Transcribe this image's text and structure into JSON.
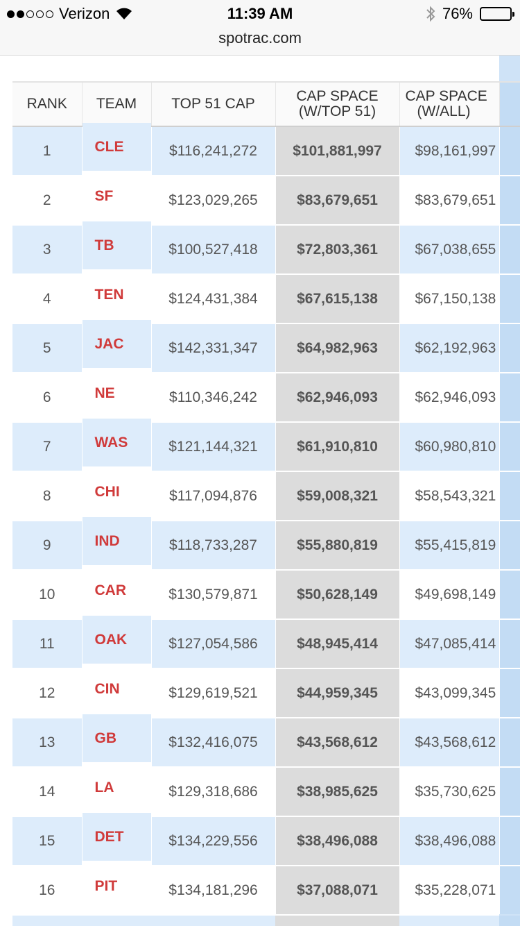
{
  "status_bar": {
    "carrier": "Verizon",
    "time": "11:39 AM",
    "battery": "76%",
    "battery_level": 0.76,
    "icons": [
      "signal-dots-icon",
      "wifi-icon",
      "bluetooth-icon",
      "battery-icon"
    ]
  },
  "address_bar": {
    "url": "spotrac.com"
  },
  "colors": {
    "team_text": "#d03a3a",
    "row_highlight": "#ddecfb",
    "cap_space_column": "#dcdcdc"
  },
  "table": {
    "headers": {
      "rank": "RANK",
      "team": "TEAM",
      "top51": "TOP 51 CAP",
      "cap_space_top51_line1": "CAP SPACE",
      "cap_space_top51_line2": "(W/TOP 51)",
      "cap_space_all_line1": "CAP SPACE",
      "cap_space_all_line2": "(W/ALL)"
    },
    "rows": [
      {
        "rank": "1",
        "team": "CLE",
        "top51": "$116,241,272",
        "cap_top51": "$101,881,997",
        "cap_all": "$98,161,997"
      },
      {
        "rank": "2",
        "team": "SF",
        "top51": "$123,029,265",
        "cap_top51": "$83,679,651",
        "cap_all": "$83,679,651"
      },
      {
        "rank": "3",
        "team": "TB",
        "top51": "$100,527,418",
        "cap_top51": "$72,803,361",
        "cap_all": "$67,038,655"
      },
      {
        "rank": "4",
        "team": "TEN",
        "top51": "$124,431,384",
        "cap_top51": "$67,615,138",
        "cap_all": "$67,150,138"
      },
      {
        "rank": "5",
        "team": "JAC",
        "top51": "$142,331,347",
        "cap_top51": "$64,982,963",
        "cap_all": "$62,192,963"
      },
      {
        "rank": "6",
        "team": "NE",
        "top51": "$110,346,242",
        "cap_top51": "$62,946,093",
        "cap_all": "$62,946,093"
      },
      {
        "rank": "7",
        "team": "WAS",
        "top51": "$121,144,321",
        "cap_top51": "$61,910,810",
        "cap_all": "$60,980,810"
      },
      {
        "rank": "8",
        "team": "CHI",
        "top51": "$117,094,876",
        "cap_top51": "$59,008,321",
        "cap_all": "$58,543,321"
      },
      {
        "rank": "9",
        "team": "IND",
        "top51": "$118,733,287",
        "cap_top51": "$55,880,819",
        "cap_all": "$55,415,819"
      },
      {
        "rank": "10",
        "team": "CAR",
        "top51": "$130,579,871",
        "cap_top51": "$50,628,149",
        "cap_all": "$49,698,149"
      },
      {
        "rank": "11",
        "team": "OAK",
        "top51": "$127,054,586",
        "cap_top51": "$48,945,414",
        "cap_all": "$47,085,414"
      },
      {
        "rank": "12",
        "team": "CIN",
        "top51": "$129,619,521",
        "cap_top51": "$44,959,345",
        "cap_all": "$43,099,345"
      },
      {
        "rank": "13",
        "team": "GB",
        "top51": "$132,416,075",
        "cap_top51": "$43,568,612",
        "cap_all": "$43,568,612"
      },
      {
        "rank": "14",
        "team": "LA",
        "top51": "$129,318,686",
        "cap_top51": "$38,985,625",
        "cap_all": "$35,730,625"
      },
      {
        "rank": "15",
        "team": "DET",
        "top51": "$134,229,556",
        "cap_top51": "$38,496,088",
        "cap_all": "$38,496,088"
      },
      {
        "rank": "16",
        "team": "PIT",
        "top51": "$134,181,296",
        "cap_top51": "$37,088,071",
        "cap_all": "$35,228,071"
      }
    ]
  }
}
